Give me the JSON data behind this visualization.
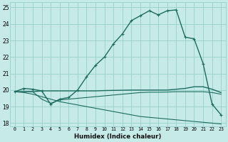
{
  "xlabel": "Humidex (Indice chaleur)",
  "xlim": [
    -0.5,
    23.5
  ],
  "ylim": [
    17.8,
    25.3
  ],
  "yticks": [
    18,
    19,
    20,
    21,
    22,
    23,
    24,
    25
  ],
  "xticks": [
    0,
    1,
    2,
    3,
    4,
    5,
    6,
    7,
    8,
    9,
    10,
    11,
    12,
    13,
    14,
    15,
    16,
    17,
    18,
    19,
    20,
    21,
    22,
    23
  ],
  "bg_color": "#c5eae8",
  "grid_color": "#9dd4d0",
  "line_color": "#1e6b60",
  "lines": [
    [
      19.9,
      20.1,
      20.05,
      19.95,
      19.15,
      19.45,
      19.55,
      20.0,
      20.8,
      21.5,
      22.0,
      22.8,
      23.4,
      24.2,
      24.5,
      24.8,
      24.55,
      24.8,
      24.85,
      23.2,
      23.1,
      21.6,
      19.15,
      18.5
    ],
    [
      19.9,
      19.9,
      19.9,
      19.95,
      19.95,
      19.95,
      19.95,
      19.95,
      19.95,
      19.95,
      19.97,
      19.98,
      19.99,
      20.0,
      20.0,
      20.0,
      20.0,
      20.0,
      20.05,
      20.1,
      20.2,
      20.2,
      20.05,
      19.85
    ],
    [
      19.9,
      19.9,
      19.9,
      19.45,
      19.2,
      19.4,
      19.45,
      19.5,
      19.55,
      19.6,
      19.65,
      19.7,
      19.75,
      19.8,
      19.85,
      19.87,
      19.87,
      19.88,
      19.9,
      19.9,
      19.9,
      19.9,
      19.85,
      19.75
    ],
    [
      19.9,
      19.85,
      19.75,
      19.6,
      19.45,
      19.3,
      19.2,
      19.1,
      19.0,
      18.9,
      18.8,
      18.7,
      18.6,
      18.5,
      18.4,
      18.35,
      18.3,
      18.25,
      18.2,
      18.15,
      18.1,
      18.05,
      18.0,
      17.95
    ]
  ]
}
